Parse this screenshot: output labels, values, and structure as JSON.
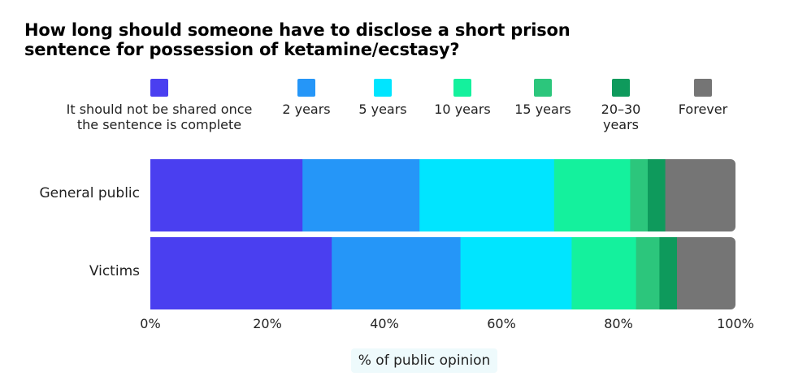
{
  "chart_data": {
    "type": "bar",
    "orientation": "horizontal",
    "stacked": true,
    "title": "How long should someone have to disclose a short prison sentence for possession of ketamine/ecstasy?",
    "title_lines": [
      "How long should someone have to disclose a short prison",
      "sentence for possession of ketamine/ecstasy?"
    ],
    "xlabel": "% of public opinion",
    "categories": [
      "General public",
      "Victims"
    ],
    "xlim": [
      0,
      100
    ],
    "x_ticks": [
      "0%",
      "20%",
      "40%",
      "60%",
      "80%",
      "100%"
    ],
    "x_tick_values": [
      0,
      20,
      40,
      60,
      80,
      100
    ],
    "legend_placement": "top",
    "series": [
      {
        "name": "It should not be shared once the sentence is complete",
        "legend_lines": [
          "It should not be shared once",
          "the sentence is complete"
        ],
        "color": "#4a3ff0",
        "values": [
          26,
          31
        ]
      },
      {
        "name": "2 years",
        "legend_lines": [
          "2 years"
        ],
        "color": "#2596f8",
        "values": [
          20,
          22
        ]
      },
      {
        "name": "5 years",
        "legend_lines": [
          "5 years"
        ],
        "color": "#00e5ff",
        "values": [
          23,
          19
        ]
      },
      {
        "name": "10 years",
        "legend_lines": [
          "10 years"
        ],
        "color": "#14f19d",
        "values": [
          13,
          11
        ]
      },
      {
        "name": "15 years",
        "legend_lines": [
          "15 years"
        ],
        "color": "#2cc67c",
        "values": [
          3,
          4
        ]
      },
      {
        "name": "20–30 years",
        "legend_lines": [
          "20–30",
          "years"
        ],
        "color": "#0e9a5c",
        "values": [
          3,
          3
        ]
      },
      {
        "name": "Forever",
        "legend_lines": [
          "Forever"
        ],
        "color": "#757575",
        "values": [
          12,
          10
        ]
      }
    ]
  }
}
